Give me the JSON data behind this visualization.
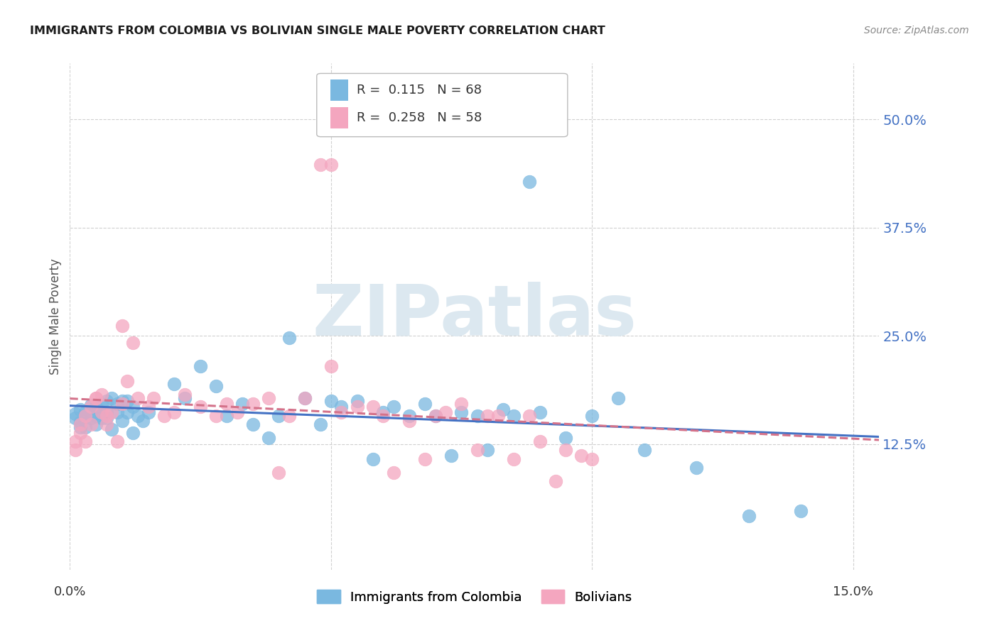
{
  "title": "IMMIGRANTS FROM COLOMBIA VS BOLIVIAN SINGLE MALE POVERTY CORRELATION CHART",
  "source": "Source: ZipAtlas.com",
  "ylabel": "Single Male Poverty",
  "ytick_labels": [
    "50.0%",
    "37.5%",
    "25.0%",
    "12.5%"
  ],
  "ytick_values": [
    0.5,
    0.375,
    0.25,
    0.125
  ],
  "xtick_labels": [
    "0.0%",
    "15.0%"
  ],
  "xtick_values": [
    0.0,
    0.15
  ],
  "xlim": [
    0.0,
    0.155
  ],
  "ylim": [
    -0.02,
    0.565
  ],
  "legend_r1_text": "R =  0.115   N = 68",
  "legend_r2_text": "R =  0.258   N = 58",
  "color_blue": "#7ab8e0",
  "color_pink": "#f4a6bf",
  "color_blue_line": "#4472c4",
  "color_pink_line": "#d4728a",
  "watermark": "ZIPatlas",
  "watermark_color": "#dce8f0",
  "title_color": "#1a1a1a",
  "source_color": "#888888",
  "ylabel_color": "#555555",
  "ytick_color": "#4472c4",
  "xtick_color": "#333333",
  "grid_color": "#d0d0d0",
  "colombia_x": [
    0.001,
    0.001,
    0.002,
    0.002,
    0.002,
    0.003,
    0.003,
    0.003,
    0.004,
    0.004,
    0.004,
    0.005,
    0.005,
    0.005,
    0.006,
    0.006,
    0.007,
    0.007,
    0.007,
    0.008,
    0.008,
    0.009,
    0.009,
    0.01,
    0.01,
    0.011,
    0.011,
    0.012,
    0.012,
    0.013,
    0.014,
    0.015,
    0.02,
    0.022,
    0.025,
    0.028,
    0.03,
    0.033,
    0.035,
    0.038,
    0.04,
    0.042,
    0.045,
    0.048,
    0.05,
    0.052,
    0.055,
    0.058,
    0.06,
    0.062,
    0.065,
    0.068,
    0.07,
    0.073,
    0.075,
    0.078,
    0.08,
    0.083,
    0.085,
    0.088,
    0.09,
    0.095,
    0.1,
    0.105,
    0.11,
    0.12,
    0.13,
    0.14
  ],
  "colombia_y": [
    0.16,
    0.155,
    0.165,
    0.15,
    0.145,
    0.162,
    0.158,
    0.145,
    0.17,
    0.155,
    0.162,
    0.158,
    0.148,
    0.168,
    0.155,
    0.172,
    0.162,
    0.155,
    0.175,
    0.178,
    0.142,
    0.162,
    0.172,
    0.175,
    0.152,
    0.175,
    0.162,
    0.168,
    0.138,
    0.158,
    0.152,
    0.162,
    0.195,
    0.178,
    0.215,
    0.192,
    0.158,
    0.172,
    0.148,
    0.132,
    0.158,
    0.248,
    0.178,
    0.148,
    0.175,
    0.168,
    0.175,
    0.108,
    0.162,
    0.168,
    0.158,
    0.172,
    0.158,
    0.112,
    0.162,
    0.158,
    0.118,
    0.165,
    0.158,
    0.428,
    0.162,
    0.132,
    0.158,
    0.178,
    0.118,
    0.098,
    0.042,
    0.048
  ],
  "bolivia_x": [
    0.001,
    0.001,
    0.002,
    0.002,
    0.003,
    0.003,
    0.004,
    0.004,
    0.005,
    0.005,
    0.006,
    0.006,
    0.007,
    0.007,
    0.008,
    0.009,
    0.01,
    0.01,
    0.011,
    0.012,
    0.013,
    0.015,
    0.016,
    0.018,
    0.02,
    0.022,
    0.025,
    0.028,
    0.03,
    0.032,
    0.035,
    0.038,
    0.04,
    0.042,
    0.045,
    0.048,
    0.05,
    0.052,
    0.055,
    0.058,
    0.06,
    0.062,
    0.065,
    0.068,
    0.07,
    0.072,
    0.075,
    0.078,
    0.08,
    0.082,
    0.085,
    0.088,
    0.09,
    0.093,
    0.095,
    0.098,
    0.1,
    0.05
  ],
  "bolivia_y": [
    0.118,
    0.128,
    0.148,
    0.138,
    0.158,
    0.128,
    0.148,
    0.168,
    0.178,
    0.178,
    0.162,
    0.182,
    0.158,
    0.148,
    0.162,
    0.128,
    0.262,
    0.172,
    0.198,
    0.242,
    0.178,
    0.168,
    0.178,
    0.158,
    0.162,
    0.182,
    0.168,
    0.158,
    0.172,
    0.162,
    0.172,
    0.178,
    0.092,
    0.158,
    0.178,
    0.448,
    0.448,
    0.162,
    0.168,
    0.168,
    0.158,
    0.092,
    0.152,
    0.108,
    0.158,
    0.162,
    0.172,
    0.118,
    0.158,
    0.158,
    0.108,
    0.158,
    0.128,
    0.082,
    0.118,
    0.112,
    0.108,
    0.215
  ]
}
